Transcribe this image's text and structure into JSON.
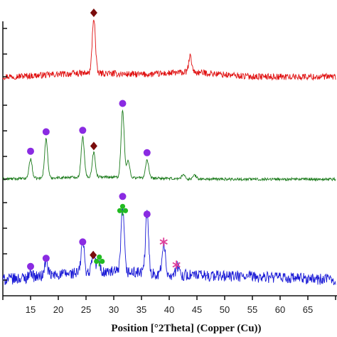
{
  "chart_data": {
    "type": "line",
    "title": "",
    "xlabel": "Position [°2Theta] (Copper (Cu))",
    "ylabel": "",
    "xlim": [
      10,
      70
    ],
    "x_ticks": [
      "15",
      "20",
      "25",
      "30",
      "35",
      "40",
      "45",
      "50",
      "55",
      "60",
      "65"
    ],
    "grid": false,
    "panels": [
      {
        "color": "#e01010",
        "peaks": [
          {
            "x": 26.4,
            "h": 0.78
          },
          {
            "x": 43.8,
            "h": 0.22
          }
        ],
        "markers": [
          {
            "x": 26.4,
            "symbol": "diamond",
            "color": "#7a0c0c"
          }
        ]
      },
      {
        "color": "#1a7a1a",
        "peaks": [
          {
            "x": 15.0,
            "h": 0.26
          },
          {
            "x": 17.8,
            "h": 0.52
          },
          {
            "x": 24.4,
            "h": 0.54
          },
          {
            "x": 26.4,
            "h": 0.33
          },
          {
            "x": 31.6,
            "h": 0.9
          },
          {
            "x": 32.6,
            "h": 0.22
          },
          {
            "x": 36.0,
            "h": 0.24
          },
          {
            "x": 42.5,
            "h": 0.06
          },
          {
            "x": 44.6,
            "h": 0.05
          }
        ],
        "markers": [
          {
            "x": 15.0,
            "symbol": "circle",
            "color": "#8a2be2"
          },
          {
            "x": 17.8,
            "symbol": "circle",
            "color": "#8a2be2"
          },
          {
            "x": 24.4,
            "symbol": "circle",
            "color": "#8a2be2"
          },
          {
            "x": 26.4,
            "symbol": "diamond",
            "color": "#7a0c0c"
          },
          {
            "x": 31.6,
            "symbol": "circle",
            "color": "#8a2be2"
          },
          {
            "x": 36.0,
            "symbol": "circle",
            "color": "#8a2be2"
          }
        ]
      },
      {
        "color": "#1a1ad6",
        "peaks": [
          {
            "x": 15.0,
            "h": 0.08
          },
          {
            "x": 17.8,
            "h": 0.18
          },
          {
            "x": 24.4,
            "h": 0.38
          },
          {
            "x": 26.3,
            "h": 0.22
          },
          {
            "x": 27.2,
            "h": 0.16
          },
          {
            "x": 31.6,
            "h": 0.78
          },
          {
            "x": 36.0,
            "h": 0.72
          },
          {
            "x": 39.0,
            "h": 0.38
          },
          {
            "x": 41.5,
            "h": 0.1
          }
        ],
        "markers": [
          {
            "x": 15.0,
            "symbol": "circle",
            "color": "#8a2be2"
          },
          {
            "x": 17.8,
            "symbol": "circle",
            "color": "#8a2be2"
          },
          {
            "x": 24.4,
            "symbol": "circle",
            "color": "#8a2be2"
          },
          {
            "x": 26.3,
            "symbol": "diamond",
            "color": "#7a0c0c"
          },
          {
            "x": 27.4,
            "symbol": "club",
            "color": "#22bb22"
          },
          {
            "x": 31.6,
            "symbol": "club",
            "color": "#22bb22"
          },
          {
            "x": 31.6,
            "symbol": "circle",
            "color": "#8a2be2"
          },
          {
            "x": 36.0,
            "symbol": "circle",
            "color": "#8a2be2"
          },
          {
            "x": 39.0,
            "symbol": "asterisk",
            "color": "#e0409a"
          },
          {
            "x": 41.3,
            "symbol": "asterisk",
            "color": "#e0409a"
          }
        ]
      }
    ]
  }
}
